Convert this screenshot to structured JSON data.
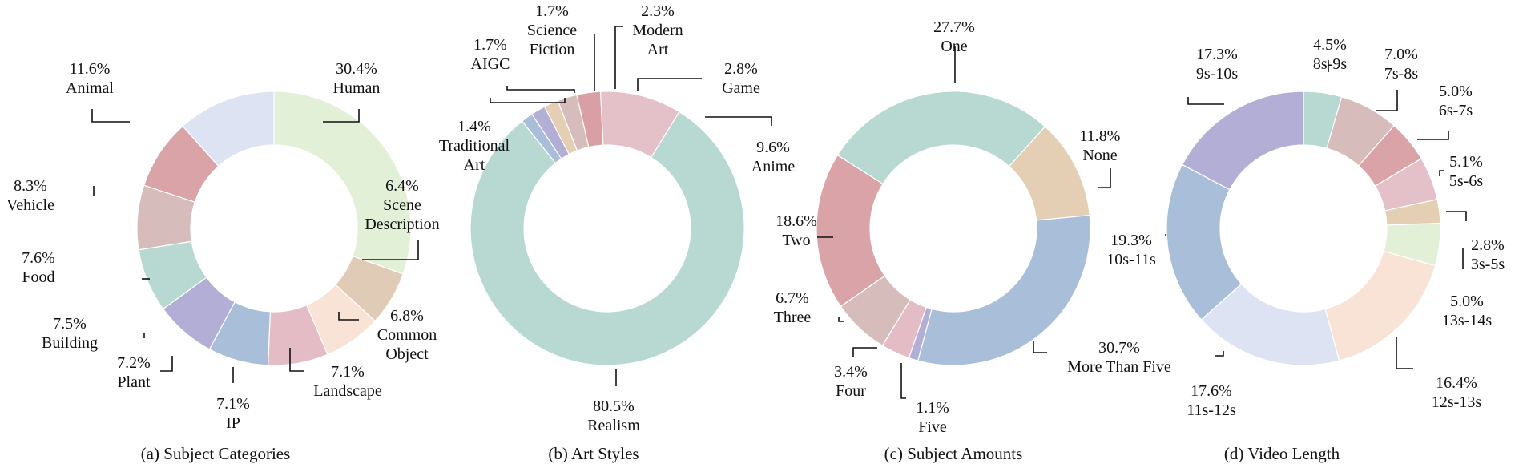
{
  "chart_data": [
    {
      "type": "pie",
      "donut": true,
      "title": "(a) Subject Categories",
      "slices": [
        {
          "label": [
            "Human"
          ],
          "value": 30.4,
          "value_text": "30.4%",
          "color": "#e2f0d8"
        },
        {
          "label": [
            "Scene",
            "Description"
          ],
          "value": 6.4,
          "value_text": "6.4%",
          "color": "#e0cbb6"
        },
        {
          "label": [
            "Common",
            "Object"
          ],
          "value": 6.8,
          "value_text": "6.8%",
          "color": "#f8e3d6"
        },
        {
          "label": [
            "Landscape"
          ],
          "value": 7.1,
          "value_text": "7.1%",
          "color": "#e4bcc6"
        },
        {
          "label": [
            "IP"
          ],
          "value": 7.1,
          "value_text": "7.1%",
          "color": "#a9bfd9"
        },
        {
          "label": [
            "Plant"
          ],
          "value": 7.2,
          "value_text": "7.2%",
          "color": "#b3aed6"
        },
        {
          "label": [
            "Building"
          ],
          "value": 7.5,
          "value_text": "7.5%",
          "color": "#b8d9d2"
        },
        {
          "label": [
            "Food"
          ],
          "value": 7.6,
          "value_text": "7.6%",
          "color": "#d7bcbc"
        },
        {
          "label": [
            "Vehicle"
          ],
          "value": 8.3,
          "value_text": "8.3%",
          "color": "#d9a3a8"
        },
        {
          "label": [
            "Animal"
          ],
          "value": 11.6,
          "value_text": "11.6%",
          "color": "#dde3f3"
        }
      ]
    },
    {
      "type": "pie",
      "donut": true,
      "title": "(b) Art Styles",
      "slices": [
        {
          "label": [
            "Game"
          ],
          "value": 2.8,
          "value_text": "2.8%",
          "color": "#d99fa5"
        },
        {
          "label": [
            "Anime"
          ],
          "value": 9.6,
          "value_text": "9.6%",
          "color": "#e4c0c8"
        },
        {
          "label": [
            "Realism"
          ],
          "value": 80.5,
          "value_text": "80.5%",
          "color": "#b8d9d2"
        },
        {
          "label": [
            "Traditional",
            "Art"
          ],
          "value": 1.4,
          "value_text": "1.4%",
          "color": "#a9bfd9"
        },
        {
          "label": [
            "AIGC"
          ],
          "value": 1.7,
          "value_text": "1.7%",
          "color": "#b3aed6"
        },
        {
          "label": [
            "Science",
            "Fiction"
          ],
          "value": 1.7,
          "value_text": "1.7%",
          "color": "#e4cfb4"
        },
        {
          "label": [
            "Modern",
            "Art"
          ],
          "value": 2.3,
          "value_text": "2.3%",
          "color": "#d7bcbc"
        }
      ]
    },
    {
      "type": "pie",
      "donut": true,
      "title": "(c) Subject Amounts",
      "slices": [
        {
          "label": [
            "None"
          ],
          "value": 11.8,
          "value_text": "11.8%",
          "color": "#e4cfb4"
        },
        {
          "label": [
            "More Than Five"
          ],
          "value": 30.7,
          "value_text": "30.7%",
          "color": "#a9bfd9"
        },
        {
          "label": [
            "Five"
          ],
          "value": 1.1,
          "value_text": "1.1%",
          "color": "#b3aed6"
        },
        {
          "label": [
            "Four"
          ],
          "value": 3.4,
          "value_text": "3.4%",
          "color": "#e4bcc6"
        },
        {
          "label": [
            "Three"
          ],
          "value": 6.7,
          "value_text": "6.7%",
          "color": "#d7bcbc"
        },
        {
          "label": [
            "Two"
          ],
          "value": 18.6,
          "value_text": "18.6%",
          "color": "#d9a3a8"
        },
        {
          "label": [
            "One"
          ],
          "value": 27.7,
          "value_text": "27.7%",
          "color": "#b8d9d2"
        }
      ]
    },
    {
      "type": "pie",
      "donut": true,
      "title": "(d) Video Length",
      "slices": [
        {
          "label": [
            "8s-9s"
          ],
          "value": 4.5,
          "value_text": "4.5%",
          "color": "#b8d9d2"
        },
        {
          "label": [
            "7s-8s"
          ],
          "value": 7.0,
          "value_text": "7.0%",
          "color": "#d7bcbc"
        },
        {
          "label": [
            "6s-7s"
          ],
          "value": 5.0,
          "value_text": "5.0%",
          "color": "#d9a3a8"
        },
        {
          "label": [
            "5s-6s"
          ],
          "value": 5.1,
          "value_text": "5.1%",
          "color": "#e4c0c8"
        },
        {
          "label": [
            "3s-5s"
          ],
          "value": 2.8,
          "value_text": "2.8%",
          "color": "#e4cfb4"
        },
        {
          "label": [
            "13s-14s"
          ],
          "value": 5.0,
          "value_text": "5.0%",
          "color": "#e2f0d8"
        },
        {
          "label": [
            "12s-13s"
          ],
          "value": 16.4,
          "value_text": "16.4%",
          "color": "#f8e3d6"
        },
        {
          "label": [
            "11s-12s"
          ],
          "value": 17.6,
          "value_text": "17.6%",
          "color": "#dde3f3"
        },
        {
          "label": [
            "10s-11s"
          ],
          "value": 19.3,
          "value_text": "19.3%",
          "color": "#a9bfd9"
        },
        {
          "label": [
            "9s-10s"
          ],
          "value": 17.3,
          "value_text": "17.3%",
          "color": "#b3aed6"
        }
      ]
    }
  ]
}
